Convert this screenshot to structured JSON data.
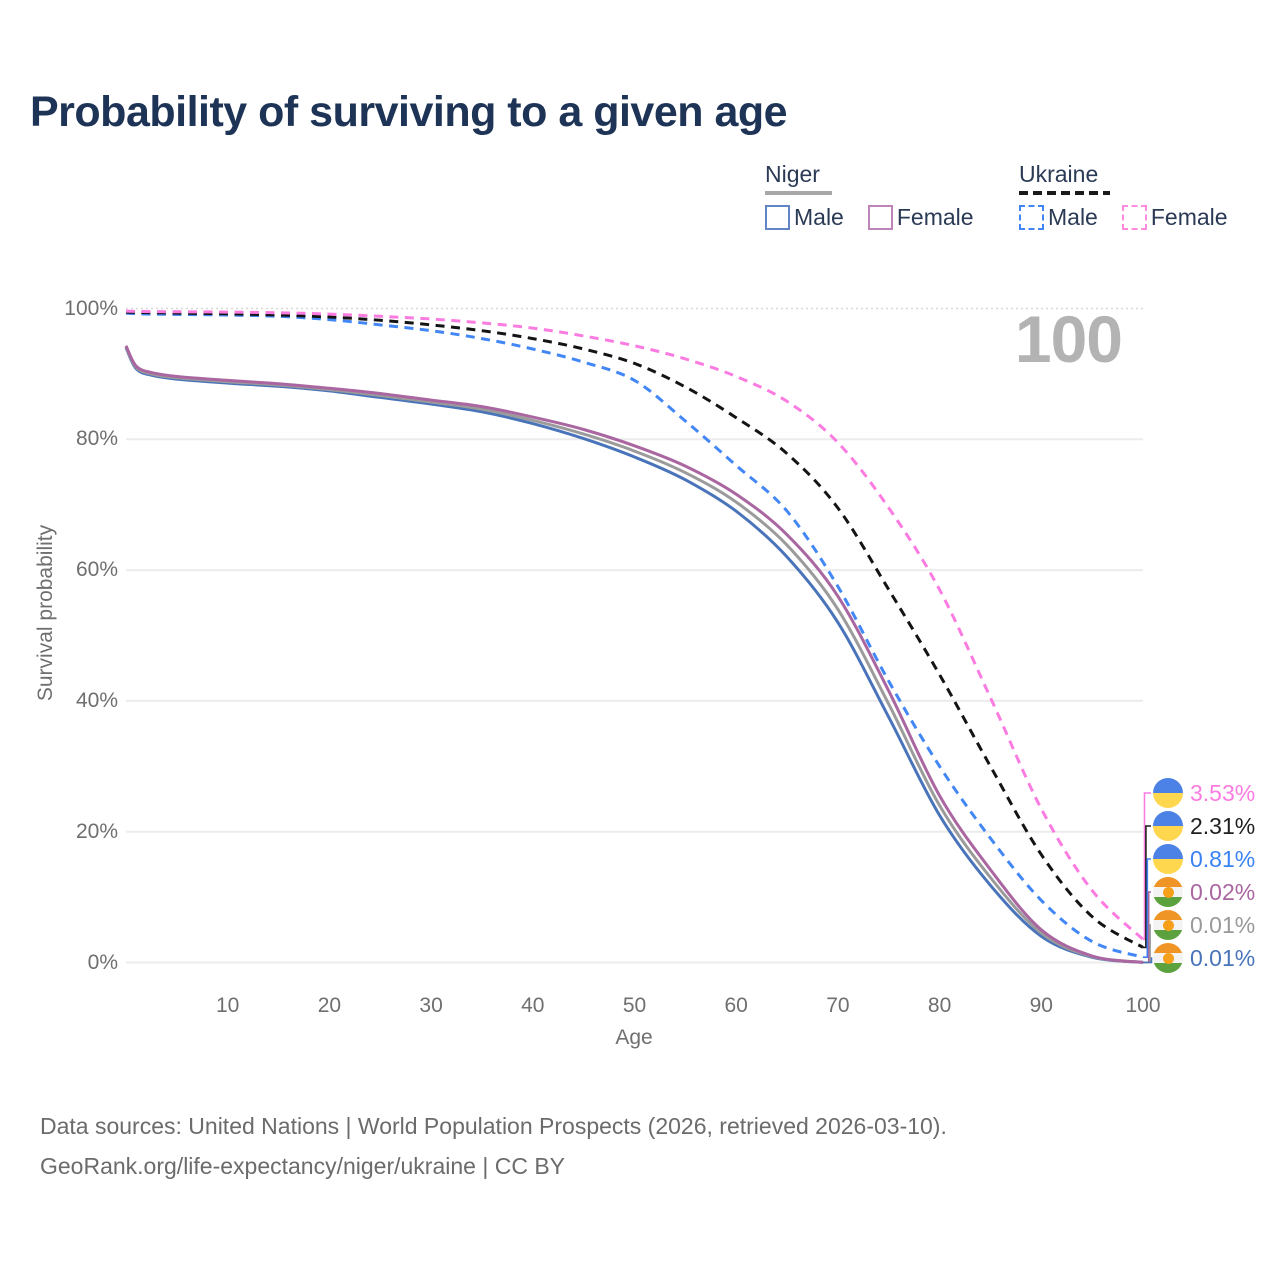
{
  "page": {
    "title": "Probability of surviving to a given age",
    "hover_age_watermark": "100"
  },
  "legend": {
    "groups": [
      {
        "id": "niger",
        "label": "Niger",
        "line_style": "solid",
        "underline_color": "#a8a8a8",
        "items": [
          {
            "label": "Male",
            "color": "#6285c6"
          },
          {
            "label": "Female",
            "color": "#bd84ba"
          }
        ]
      },
      {
        "id": "ukraine",
        "label": "Ukraine",
        "line_style": "dashed",
        "underline_color": "#1a1a1a",
        "items": [
          {
            "label": "Male",
            "color": "#4285f4"
          },
          {
            "label": "Female",
            "color": "#ff8ae0"
          }
        ]
      }
    ]
  },
  "axes": {
    "y_title": "Survival probability",
    "x_title": "Age",
    "y_ticks": [
      {
        "label": "100%",
        "value": 100
      },
      {
        "label": "80%",
        "value": 80
      },
      {
        "label": "60%",
        "value": 60
      },
      {
        "label": "40%",
        "value": 40
      },
      {
        "label": "20%",
        "value": 20
      },
      {
        "label": "0%",
        "value": 0
      }
    ],
    "x_ticks": [
      {
        "label": "10",
        "value": 10
      },
      {
        "label": "20",
        "value": 20
      },
      {
        "label": "30",
        "value": 30
      },
      {
        "label": "40",
        "value": 40
      },
      {
        "label": "50",
        "value": 50
      },
      {
        "label": "60",
        "value": 60
      },
      {
        "label": "70",
        "value": 70
      },
      {
        "label": "80",
        "value": 80
      },
      {
        "label": "90",
        "value": 90
      },
      {
        "label": "100",
        "value": 100
      }
    ]
  },
  "end_labels": [
    {
      "value": "3.53%",
      "series": "Ukraine Female",
      "flag": "ukraine",
      "color": "#fb7ce1"
    },
    {
      "value": "2.31%",
      "series": "Ukraine Both sexes",
      "flag": "ukraine",
      "color": "#1f1f1f"
    },
    {
      "value": "0.81%",
      "series": "Ukraine Male",
      "flag": "ukraine",
      "color": "#3b82f4"
    },
    {
      "value": "0.02%",
      "series": "Niger Female",
      "flag": "niger",
      "color": "#aa66a0"
    },
    {
      "value": "0.01%",
      "series": "Niger Both sexes",
      "flag": "niger",
      "color": "#999999"
    },
    {
      "value": "0.01%",
      "series": "Niger Male",
      "flag": "niger",
      "color": "#4a74ba"
    }
  ],
  "footer": {
    "line1": "Data sources: United Nations | World Population Prospects (2026, retrieved 2026-03-10).",
    "line2": "GeoRank.org/life-expectancy/niger/ukraine | CC BY"
  },
  "chart_data": {
    "type": "line",
    "title": "Probability of surviving to a given age",
    "xlabel": "Age",
    "ylabel": "Survival probability",
    "xlim": [
      0,
      100
    ],
    "ylim": [
      0,
      100
    ],
    "grid": "horizontal",
    "legend_position": "top-right",
    "x": [
      0,
      1,
      2.5,
      5,
      10,
      15,
      20,
      25,
      30,
      35,
      40,
      45,
      50,
      55,
      60,
      65,
      70,
      75,
      80,
      85,
      90,
      95,
      100
    ],
    "series": [
      {
        "name": "Niger Male",
        "country": "Niger",
        "sex": "Male",
        "style": "solid",
        "color": "#4a74ba",
        "values": [
          94.0,
          90.8,
          89.8,
          89.2,
          88.6,
          88.1,
          87.4,
          86.4,
          85.4,
          84.2,
          82.4,
          80.1,
          77.3,
          73.8,
          69.0,
          62.0,
          52.0,
          37.5,
          22.5,
          11.8,
          4.0,
          0.8,
          0.01
        ],
        "end_label": "0.01%"
      },
      {
        "name": "Niger Both sexes",
        "country": "Niger",
        "sex": "Both",
        "style": "solid",
        "color": "#9b9b9b",
        "values": [
          94.1,
          91.0,
          90.0,
          89.4,
          88.8,
          88.3,
          87.6,
          86.7,
          85.7,
          84.6,
          82.9,
          80.8,
          78.2,
          74.9,
          70.4,
          63.8,
          54.0,
          39.5,
          24.0,
          13.0,
          4.5,
          0.9,
          0.01
        ],
        "end_label": "0.01%"
      },
      {
        "name": "Niger Female",
        "country": "Niger",
        "sex": "Female",
        "style": "solid",
        "color": "#aa66a0",
        "values": [
          94.3,
          91.2,
          90.2,
          89.6,
          89.0,
          88.5,
          87.8,
          87.0,
          86.0,
          85.0,
          83.4,
          81.5,
          79.0,
          75.9,
          71.6,
          65.4,
          56.0,
          41.5,
          25.5,
          14.2,
          5.0,
          1.0,
          0.02
        ],
        "end_label": "0.02%"
      },
      {
        "name": "Ukraine Male",
        "country": "Ukraine",
        "sex": "Male",
        "style": "dashed",
        "color": "#4287f5",
        "values": [
          99.3,
          99.2,
          99.15,
          99.1,
          99.0,
          98.8,
          98.3,
          97.5,
          96.6,
          95.4,
          93.8,
          91.8,
          89.0,
          82.8,
          76.0,
          69.0,
          57.5,
          43.0,
          30.0,
          19.0,
          9.5,
          3.2,
          0.81
        ],
        "end_label": "0.81%"
      },
      {
        "name": "Ukraine Both sexes",
        "country": "Ukraine",
        "sex": "Both",
        "style": "dashed",
        "color": "#141414",
        "values": [
          99.45,
          99.4,
          99.37,
          99.3,
          99.2,
          99.0,
          98.7,
          98.2,
          97.5,
          96.6,
          95.4,
          93.8,
          91.6,
          88.0,
          83.3,
          77.8,
          69.5,
          57.0,
          44.0,
          30.0,
          16.5,
          7.0,
          2.31
        ],
        "end_label": "2.31%"
      },
      {
        "name": "Ukraine Female",
        "country": "Ukraine",
        "sex": "Female",
        "style": "dashed",
        "color": "#fb7ce1",
        "values": [
          99.6,
          99.55,
          99.52,
          99.5,
          99.45,
          99.35,
          99.15,
          98.8,
          98.4,
          97.8,
          97.0,
          95.8,
          94.3,
          92.3,
          89.6,
          85.8,
          79.5,
          69.5,
          57.0,
          40.5,
          23.5,
          11.0,
          3.53
        ],
        "end_label": "3.53%"
      }
    ]
  }
}
